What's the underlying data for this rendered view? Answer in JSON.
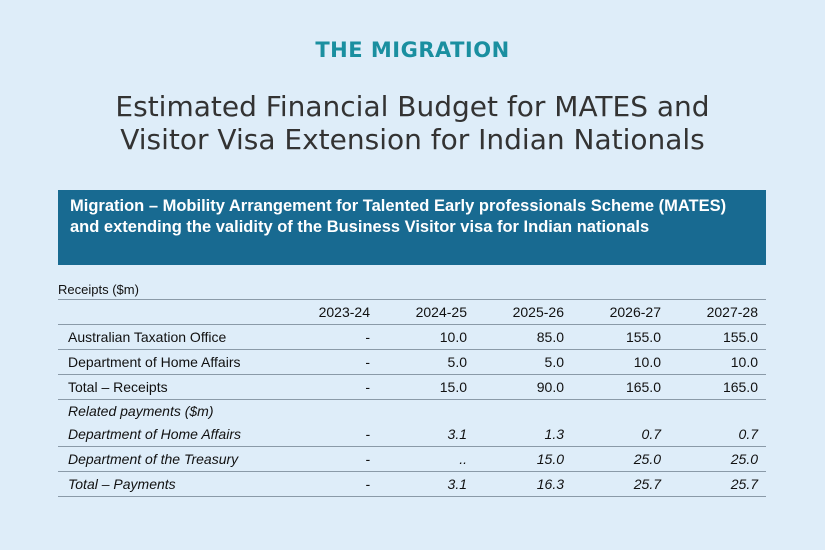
{
  "logo": "THE MIGRATION",
  "title_line1": "Estimated Financial Budget for MATES and",
  "title_line2": "Visitor Visa Extension for Indian Nationals",
  "table": {
    "heading": "Migration – Mobility Arrangement for Talented Early professionals Scheme (MATES) and extending the validity of the Business Visitor visa for Indian nationals",
    "receipts_label": "Receipts ($m)",
    "columns": [
      "",
      "2023-24",
      "2024-25",
      "2025-26",
      "2026-27",
      "2027-28"
    ],
    "rows": [
      {
        "cells": [
          "Australian Taxation Office",
          "-",
          "10.0",
          "85.0",
          "155.0",
          "155.0"
        ]
      },
      {
        "cells": [
          "Department of Home Affairs",
          "-",
          "5.0",
          "5.0",
          "10.0",
          "10.0"
        ]
      },
      {
        "cells": [
          "Total – Receipts",
          "-",
          "15.0",
          "90.0",
          "165.0",
          "165.0"
        ]
      },
      {
        "cells": [
          "Related payments ($m)",
          "",
          "",
          "",
          "",
          ""
        ]
      },
      {
        "cells": [
          "Department of Home Affairs",
          "-",
          "3.1",
          "1.3",
          "0.7",
          "0.7"
        ]
      },
      {
        "cells": [
          "Department of the Treasury",
          "-",
          "..",
          "15.0",
          "25.0",
          "25.0"
        ]
      },
      {
        "cells": [
          "Total – Payments",
          "-",
          "3.1",
          "16.3",
          "25.7",
          "25.7"
        ]
      }
    ]
  }
}
